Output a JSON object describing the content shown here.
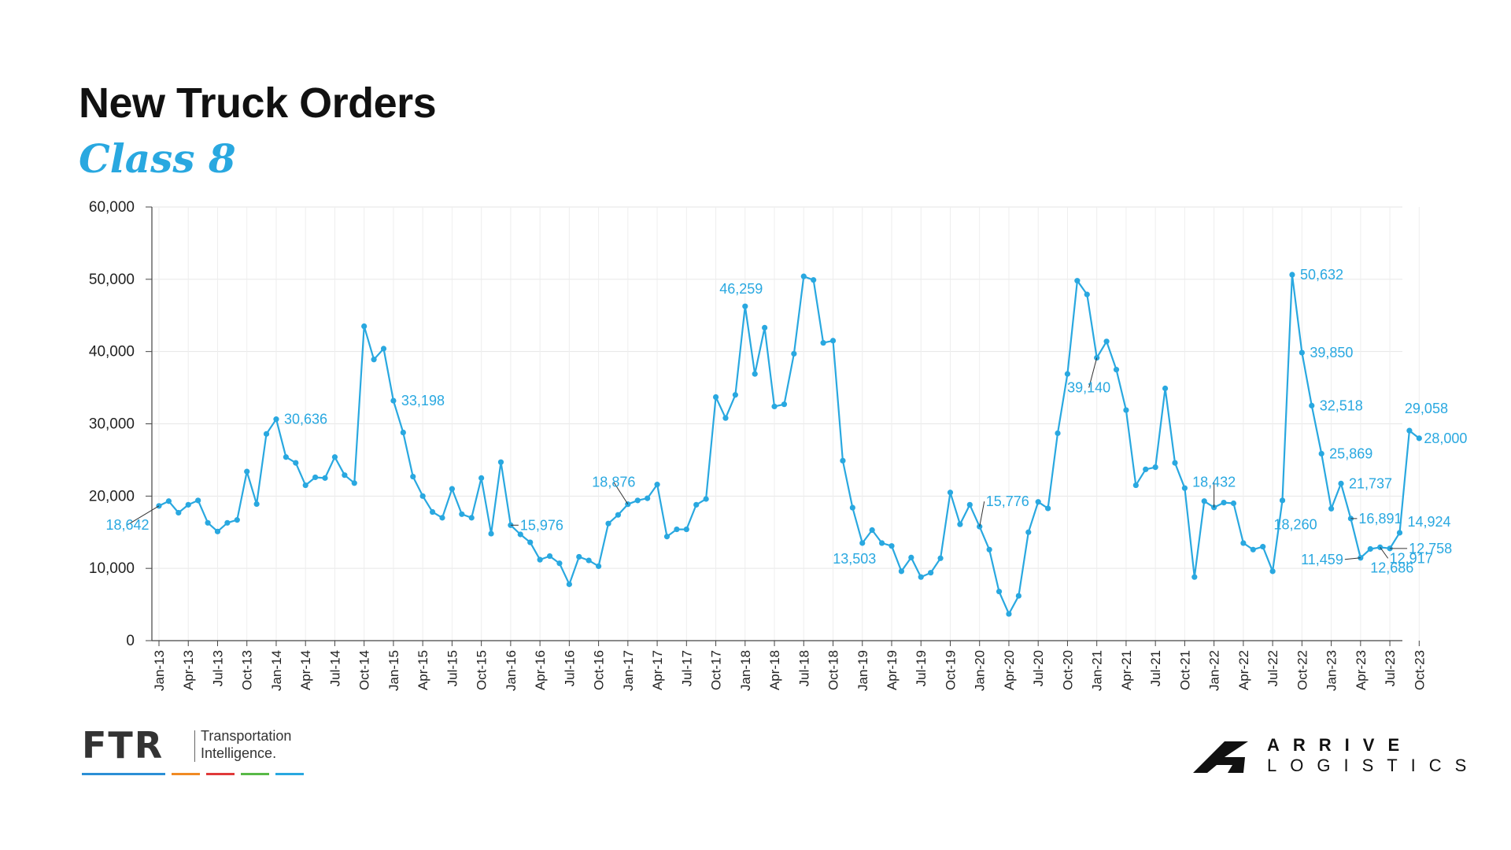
{
  "header": {
    "title": "New Truck Orders",
    "subtitle": "Class 8"
  },
  "chart_data": {
    "type": "line",
    "title": "New Truck Orders",
    "subtitle": "Class 8",
    "xlabel": "",
    "ylabel": "",
    "ylim": [
      0,
      60000
    ],
    "y_ticks": [
      0,
      10000,
      20000,
      30000,
      40000,
      50000,
      60000
    ],
    "y_tick_labels": [
      "0",
      "10,000",
      "20,000",
      "30,000",
      "40,000",
      "50,000",
      "60,000"
    ],
    "grid": true,
    "x_tick_labels": [
      "Jan-13",
      "Apr-13",
      "Jul-13",
      "Oct-13",
      "Jan-14",
      "Apr-14",
      "Jul-14",
      "Oct-14",
      "Jan-15",
      "Apr-15",
      "Jul-15",
      "Oct-15",
      "Jan-16",
      "Apr-16",
      "Jul-16",
      "Oct-16",
      "Jan-17",
      "Apr-17",
      "Jul-17",
      "Oct-17",
      "Jan-18",
      "Apr-18",
      "Jul-18",
      "Oct-18",
      "Jan-19",
      "Apr-19",
      "Jul-19",
      "Oct-19",
      "Jan-20",
      "Apr-20",
      "Jul-20",
      "Oct-20",
      "Jan-21",
      "Apr-21",
      "Jul-21",
      "Oct-21",
      "Jan-22",
      "Apr-22",
      "Jul-22",
      "Oct-22",
      "Jan-23",
      "Apr-23",
      "Jul-23",
      "Oct-23"
    ],
    "series_color": "#29a8e0",
    "start_month": "Jan-13",
    "values": [
      18642,
      19300,
      17700,
      18800,
      19400,
      16300,
      15100,
      16300,
      16700,
      23400,
      18900,
      28600,
      30636,
      25400,
      24600,
      21500,
      22600,
      22500,
      25400,
      22900,
      21800,
      43500,
      38900,
      40400,
      33198,
      28800,
      22700,
      20000,
      17800,
      17000,
      21000,
      17500,
      17000,
      22500,
      14800,
      24700,
      15976,
      14700,
      13600,
      11200,
      11700,
      10700,
      7800,
      11600,
      11100,
      10300,
      16200,
      17400,
      18876,
      19400,
      19700,
      21600,
      14400,
      15400,
      15400,
      18800,
      19600,
      33700,
      30800,
      34000,
      46259,
      36900,
      43300,
      32400,
      32700,
      39700,
      50400,
      49900,
      41200,
      41500,
      24900,
      18400,
      13503,
      15300,
      13500,
      13100,
      9600,
      11500,
      8800,
      9400,
      11400,
      20500,
      16100,
      18800,
      15776,
      12600,
      6800,
      3700,
      6200,
      15000,
      19200,
      18300,
      28700,
      36900,
      49800,
      47900,
      39140,
      41400,
      37500,
      31900,
      21500,
      23700,
      24000,
      34900,
      24600,
      21100,
      8800,
      19300,
      18432,
      19100,
      19000,
      13500,
      12600,
      13000,
      9600,
      19400,
      50632,
      39850,
      32518,
      25869,
      18260,
      21737,
      16891,
      11459,
      12686,
      12917,
      12758,
      14924,
      29058,
      28000
    ],
    "annotations": [
      {
        "month": "Jan-13",
        "value": 18642,
        "label": "18,642"
      },
      {
        "month": "Jan-14",
        "value": 30636,
        "label": "30,636"
      },
      {
        "month": "Jan-15",
        "value": 33198,
        "label": "33,198"
      },
      {
        "month": "Jan-16",
        "value": 15976,
        "label": "15,976"
      },
      {
        "month": "Jan-17",
        "value": 18876,
        "label": "18,876"
      },
      {
        "month": "Jan-18",
        "value": 46259,
        "label": "46,259"
      },
      {
        "month": "Jan-19",
        "value": 13503,
        "label": "13,503"
      },
      {
        "month": "Jan-20",
        "value": 15776,
        "label": "15,776"
      },
      {
        "month": "Jan-21",
        "value": 39140,
        "label": "39,140"
      },
      {
        "month": "Jan-22",
        "value": 18432,
        "label": "18,432"
      },
      {
        "month": "Sep-22",
        "value": 50632,
        "label": "50,632"
      },
      {
        "month": "Oct-22",
        "value": 39850,
        "label": "39,850"
      },
      {
        "month": "Nov-22",
        "value": 32518,
        "label": "32,518"
      },
      {
        "month": "Dec-22",
        "value": 25869,
        "label": "25,869"
      },
      {
        "month": "Jan-23",
        "value": 18260,
        "label": "18,260"
      },
      {
        "month": "Feb-23",
        "value": 21737,
        "label": "21,737"
      },
      {
        "month": "Mar-23",
        "value": 16891,
        "label": "16,891"
      },
      {
        "month": "Apr-23",
        "value": 11459,
        "label": "11,459"
      },
      {
        "month": "May-23",
        "value": 12686,
        "label": "12,686"
      },
      {
        "month": "Jun-23",
        "value": 12917,
        "label": "12,917"
      },
      {
        "month": "Jul-23",
        "value": 12758,
        "label": "12,758"
      },
      {
        "month": "Aug-23",
        "value": 14924,
        "label": "14,924"
      },
      {
        "month": "Sep-23",
        "value": 29058,
        "label": "29,058"
      },
      {
        "month": "Oct-23",
        "value": 28000,
        "label": "28,000"
      }
    ]
  },
  "footer": {
    "ftr_logo_text": "FTR",
    "ftr_tagline_1": "Transportation",
    "ftr_tagline_2": "Intelligence.",
    "ftr_bar_colors": [
      "#2b8fd6",
      "#f08a24",
      "#e03a3a",
      "#58b947",
      "#29a8e0"
    ],
    "arrive_line_1": "ARRIVE",
    "arrive_line_2": "LOGISTICS",
    "arrive_icon": "arrive-chevron-icon"
  }
}
